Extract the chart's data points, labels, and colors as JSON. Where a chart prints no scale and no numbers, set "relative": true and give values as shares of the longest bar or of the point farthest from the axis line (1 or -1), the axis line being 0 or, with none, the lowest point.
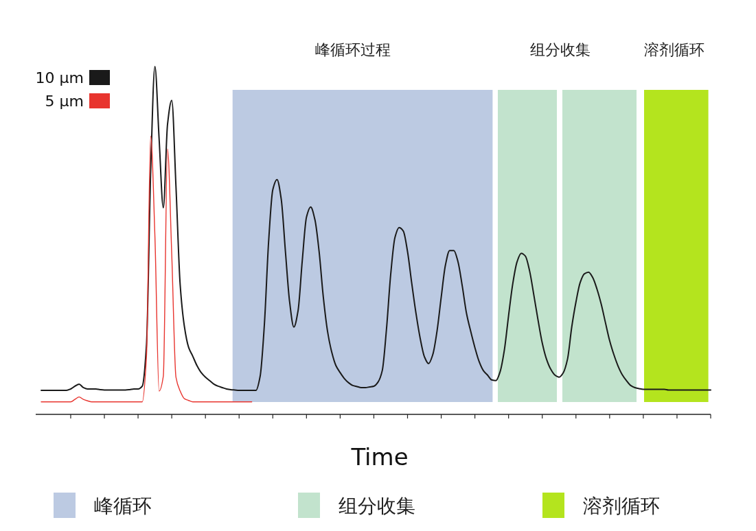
{
  "chart_data": {
    "type": "line",
    "relative": true,
    "xlabel": "Time",
    "legend": "top left",
    "categories": [
      null,
      null,
      null,
      null,
      null,
      null,
      null,
      null,
      null,
      null,
      null,
      null,
      null,
      null,
      null,
      null,
      null,
      null,
      null,
      null,
      null,
      null,
      null,
      null,
      null,
      null,
      null,
      null,
      null,
      null,
      null,
      null,
      null,
      null,
      null,
      null,
      null,
      null,
      null,
      null,
      null,
      null,
      null,
      null,
      null,
      null,
      null,
      null,
      null,
      null,
      null,
      null,
      null,
      null,
      null,
      null,
      null,
      null,
      null,
      null,
      null,
      null,
      null,
      null,
      null,
      null,
      null,
      null,
      null,
      null,
      null,
      null,
      null,
      null,
      null,
      null,
      null,
      null,
      null,
      null,
      null,
      null,
      null,
      null,
      null,
      null,
      null,
      null,
      null,
      null,
      null,
      null,
      null,
      null,
      null,
      null,
      null,
      null,
      null,
      null,
      null,
      null,
      null,
      null,
      null,
      null,
      null,
      null,
      null,
      null,
      null,
      null,
      null,
      null,
      null,
      null,
      null,
      null,
      null,
      null,
      null,
      null,
      null,
      null,
      null,
      null,
      null,
      null,
      null,
      null,
      null,
      null,
      null,
      null,
      null,
      null,
      null,
      null,
      null,
      null,
      null,
      null,
      null,
      null,
      null,
      null,
      null,
      null,
      null,
      null,
      null,
      null,
      null,
      null,
      null,
      null,
      null,
      null,
      null,
      null
    ],
    "series": [
      {
        "name": "10 µm",
        "color": "#1a1a1a",
        "values": [
          0.069,
          0.069,
          0.069,
          0.069,
          0.069,
          0.069,
          0.069,
          0.073,
          0.081,
          0.087,
          0.077,
          0.073,
          0.073,
          0.073,
          0.071,
          0.07,
          0.07,
          0.07,
          0.07,
          0.07,
          0.07,
          0.071,
          0.073,
          0.073,
          0.081,
          0.2,
          0.7,
          1,
          0.792,
          0.594,
          0.834,
          0.903,
          0.656,
          0.373,
          0.253,
          0.193,
          0.167,
          0.14,
          0.12,
          0.107,
          0.097,
          0.087,
          0.081,
          0.077,
          0.073,
          0.071,
          0.07,
          0.069,
          0.069,
          0.069,
          0.069,
          0.069,
          0.11,
          0.258,
          0.495,
          0.646,
          0.675,
          0.619,
          0.468,
          0.323,
          0.251,
          0.298,
          0.442,
          0.567,
          0.596,
          0.56,
          0.468,
          0.337,
          0.239,
          0.179,
          0.14,
          0.12,
          0.103,
          0.091,
          0.083,
          0.08,
          0.077,
          0.077,
          0.079,
          0.081,
          0.093,
          0.126,
          0.245,
          0.402,
          0.508,
          0.537,
          0.527,
          0.468,
          0.377,
          0.291,
          0.219,
          0.166,
          0.146,
          0.172,
          0.239,
          0.337,
          0.429,
          0.471,
          0.471,
          0.438,
          0.369,
          0.291,
          0.239,
          0.192,
          0.152,
          0.126,
          0.113,
          0.099,
          0.097,
          0.123,
          0.185,
          0.284,
          0.376,
          0.438,
          0.463,
          0.455,
          0.412,
          0.343,
          0.271,
          0.205,
          0.159,
          0.13,
          0.113,
          0.107,
          0.12,
          0.159,
          0.251,
          0.323,
          0.379,
          0.404,
          0.409,
          0.393,
          0.36,
          0.317,
          0.264,
          0.212,
          0.172,
          0.139,
          0.114,
          0.097,
          0.083,
          0.077,
          0.074,
          0.072,
          0.072,
          0.072,
          0.072,
          0.072,
          0.072,
          0.07,
          0.07,
          0.07,
          0.07,
          0.07,
          0.07,
          0.07,
          0.07,
          0.07,
          0.07,
          0.07
        ]
      },
      {
        "name": "5 µm",
        "color": "#e8342e",
        "values": [
          0.036,
          0.036,
          0.036,
          0.036,
          0.036,
          0.036,
          0.036,
          0.036,
          0.043,
          0.05,
          0.043,
          0.039,
          0.036,
          0.036,
          0.036,
          0.036,
          0.036,
          0.036,
          0.036,
          0.036,
          0.036,
          0.036,
          0.036,
          0.036,
          0.036,
          0.167,
          0.8,
          0.513,
          0.067,
          0.11,
          0.763,
          0.46,
          0.107,
          0.067,
          0.045,
          0.04,
          0.036,
          0.036,
          0.036,
          0.036,
          0.036,
          0.036,
          0.036,
          0.036,
          0.036,
          0.036,
          0.036,
          0.036,
          0.036,
          0.036,
          0.036,
          null,
          null,
          null,
          null,
          null,
          null,
          null,
          null,
          null,
          null,
          null,
          null,
          null,
          null,
          null,
          null,
          null,
          null,
          null,
          null,
          null,
          null,
          null,
          null,
          null,
          null,
          null,
          null,
          null,
          null,
          null,
          null,
          null,
          null,
          null,
          null,
          null,
          null,
          null,
          null,
          null,
          null,
          null,
          null,
          null,
          null,
          null,
          null,
          null,
          null,
          null,
          null,
          null,
          null,
          null,
          null,
          null,
          null,
          null,
          null,
          null,
          null,
          null,
          null,
          null,
          null,
          null,
          null,
          null,
          null,
          null,
          null,
          null,
          null,
          null,
          null,
          null,
          null,
          null,
          null,
          null,
          null,
          null,
          null,
          null,
          null,
          null,
          null,
          null,
          null,
          null,
          null,
          null,
          null,
          null,
          null,
          null,
          null,
          null,
          null,
          null,
          null,
          null,
          null,
          null,
          null,
          null,
          null,
          null
        ]
      }
    ],
    "annotations": [
      "峰循环过程",
      "组分收集",
      "溶剂循环",
      "峰循环",
      "组分收集",
      "溶剂循环"
    ]
  }
}
